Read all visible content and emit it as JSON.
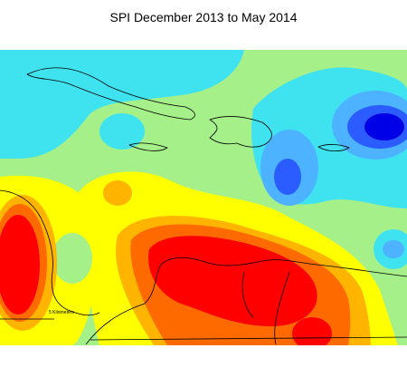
{
  "title": "SPI December 2013  to May 2014",
  "map": {
    "scale_label": "5 Kilometers"
  }
}
